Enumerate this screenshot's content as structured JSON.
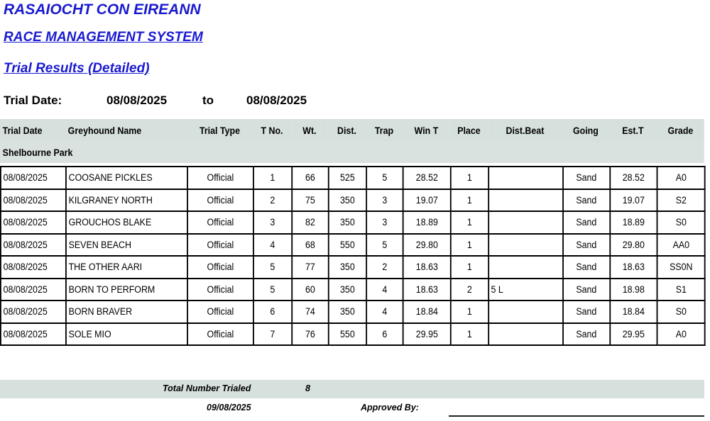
{
  "titles": {
    "org": "RASAIOCHT CON EIREANN",
    "system": "RACE MANAGEMENT SYSTEM",
    "report": "Trial Results (Detailed)"
  },
  "date_range": {
    "label": "Trial Date:",
    "from": "08/08/2025",
    "to_label": "to",
    "to": "08/08/2025"
  },
  "columns": [
    "Trial Date",
    "Greyhound Name",
    "Trial Type",
    "T No.",
    "Wt.",
    "Dist.",
    "Trap",
    "Win T",
    "Place",
    "Dist.Beat",
    "Going",
    "Est.T",
    "Grade"
  ],
  "group": "Shelbourne Park",
  "rows": [
    [
      "08/08/2025",
      "COOSANE PICKLES",
      "Official",
      "1",
      "66",
      "525",
      "5",
      "28.52",
      "1",
      "",
      "Sand",
      "28.52",
      "A0"
    ],
    [
      "08/08/2025",
      "KILGRANEY NORTH",
      "Official",
      "2",
      "75",
      "350",
      "3",
      "19.07",
      "1",
      "",
      "Sand",
      "19.07",
      "S2"
    ],
    [
      "08/08/2025",
      "GROUCHOS BLAKE",
      "Official",
      "3",
      "82",
      "350",
      "3",
      "18.89",
      "1",
      "",
      "Sand",
      "18.89",
      "S0"
    ],
    [
      "08/08/2025",
      "SEVEN BEACH",
      "Official",
      "4",
      "68",
      "550",
      "5",
      "29.80",
      "1",
      "",
      "Sand",
      "29.80",
      "AA0"
    ],
    [
      "08/08/2025",
      "THE OTHER AARI",
      "Official",
      "5",
      "77",
      "350",
      "2",
      "18.63",
      "1",
      "",
      "Sand",
      "18.63",
      "SS0N"
    ],
    [
      "08/08/2025",
      "BORN TO PERFORM",
      "Official",
      "5",
      "60",
      "350",
      "4",
      "18.63",
      "2",
      "5 L",
      "Sand",
      "18.98",
      "S1"
    ],
    [
      "08/08/2025",
      "BORN BRAVER",
      "Official",
      "6",
      "74",
      "350",
      "4",
      "18.84",
      "1",
      "",
      "Sand",
      "18.84",
      "S0"
    ],
    [
      "08/08/2025",
      "SOLE MIO",
      "Official",
      "7",
      "76",
      "550",
      "6",
      "29.95",
      "1",
      "",
      "Sand",
      "29.95",
      "A0"
    ]
  ],
  "footer": {
    "total_label": "Total Number Trialed",
    "total": "8",
    "print_date": "09/08/2025",
    "approved_label": "Approved By:"
  }
}
